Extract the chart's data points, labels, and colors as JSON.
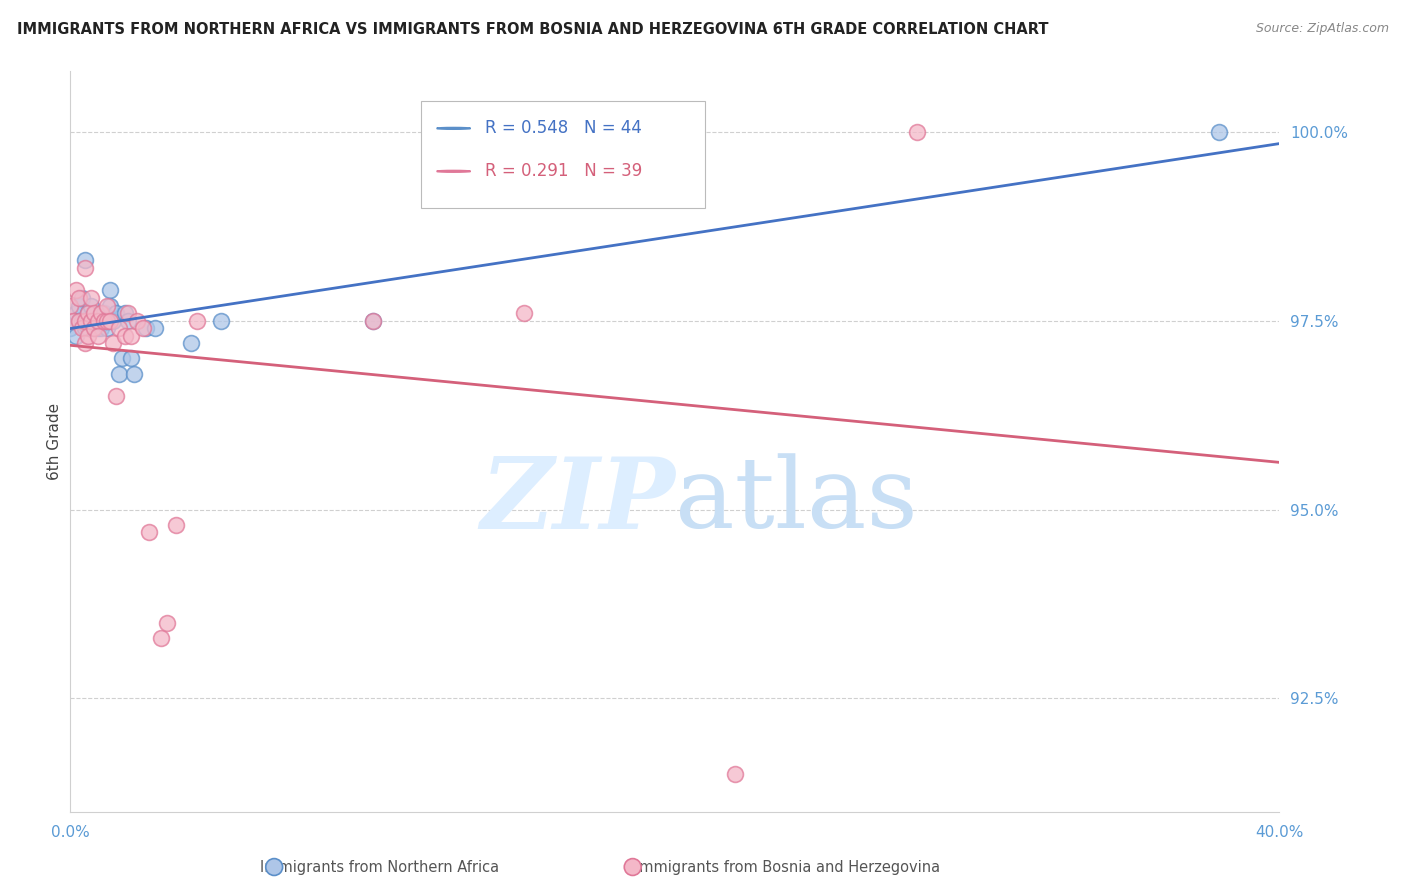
{
  "title": "IMMIGRANTS FROM NORTHERN AFRICA VS IMMIGRANTS FROM BOSNIA AND HERZEGOVINA 6TH GRADE CORRELATION CHART",
  "source": "Source: ZipAtlas.com",
  "ylabel": "6th Grade",
  "y_ticks": [
    92.5,
    95.0,
    97.5,
    100.0
  ],
  "blue_R": 0.548,
  "blue_N": 44,
  "pink_R": 0.291,
  "pink_N": 39,
  "blue_fill_color": "#aec6e8",
  "pink_fill_color": "#f4b8c8",
  "blue_edge_color": "#5b8fc9",
  "pink_edge_color": "#e07898",
  "blue_line_color": "#4472c4",
  "pink_line_color": "#d4607a",
  "legend_label_blue": "Immigrants from Northern Africa",
  "legend_label_pink": "Immigrants from Bosnia and Herzegovina",
  "blue_scatter_x": [
    0.0,
    0.001,
    0.002,
    0.002,
    0.003,
    0.003,
    0.004,
    0.004,
    0.005,
    0.005,
    0.005,
    0.006,
    0.006,
    0.007,
    0.007,
    0.008,
    0.008,
    0.008,
    0.009,
    0.009,
    0.009,
    0.01,
    0.01,
    0.01,
    0.011,
    0.011,
    0.012,
    0.012,
    0.013,
    0.013,
    0.014,
    0.015,
    0.016,
    0.017,
    0.018,
    0.019,
    0.02,
    0.021,
    0.025,
    0.028,
    0.04,
    0.05,
    0.1,
    0.38
  ],
  "blue_scatter_y": [
    97.4,
    97.5,
    97.6,
    97.3,
    97.7,
    97.5,
    97.8,
    97.5,
    98.3,
    97.5,
    97.4,
    97.6,
    97.4,
    97.5,
    97.7,
    97.5,
    97.5,
    97.4,
    97.5,
    97.5,
    97.4,
    97.4,
    97.5,
    97.6,
    97.5,
    97.6,
    97.4,
    97.5,
    97.9,
    97.7,
    97.5,
    97.6,
    96.8,
    97.0,
    97.6,
    97.5,
    97.0,
    96.8,
    97.4,
    97.4,
    97.2,
    97.5,
    97.5,
    100.0
  ],
  "pink_scatter_x": [
    0.0,
    0.001,
    0.002,
    0.003,
    0.003,
    0.004,
    0.005,
    0.005,
    0.005,
    0.006,
    0.006,
    0.007,
    0.007,
    0.008,
    0.008,
    0.009,
    0.009,
    0.01,
    0.011,
    0.012,
    0.012,
    0.013,
    0.014,
    0.015,
    0.016,
    0.018,
    0.019,
    0.02,
    0.022,
    0.024,
    0.026,
    0.03,
    0.032,
    0.035,
    0.042,
    0.1,
    0.15,
    0.22,
    0.28
  ],
  "pink_scatter_y": [
    97.7,
    97.5,
    97.9,
    97.5,
    97.8,
    97.4,
    98.2,
    97.2,
    97.5,
    97.6,
    97.3,
    97.8,
    97.5,
    97.6,
    97.4,
    97.5,
    97.3,
    97.6,
    97.5,
    97.5,
    97.7,
    97.5,
    97.2,
    96.5,
    97.4,
    97.3,
    97.6,
    97.3,
    97.5,
    97.4,
    94.7,
    93.3,
    93.5,
    94.8,
    97.5,
    97.5,
    97.6,
    91.5,
    100.0
  ],
  "background_color": "#ffffff",
  "watermark_color": "#ddeeff",
  "grid_color": "#d0d0d0",
  "title_fontsize": 10.5,
  "axis_tick_color": "#5b9bd5",
  "tick_fontsize": 11,
  "marker_size": 130,
  "x_min": 0.0,
  "x_max": 0.4,
  "y_min": 91.0,
  "y_max": 100.8
}
